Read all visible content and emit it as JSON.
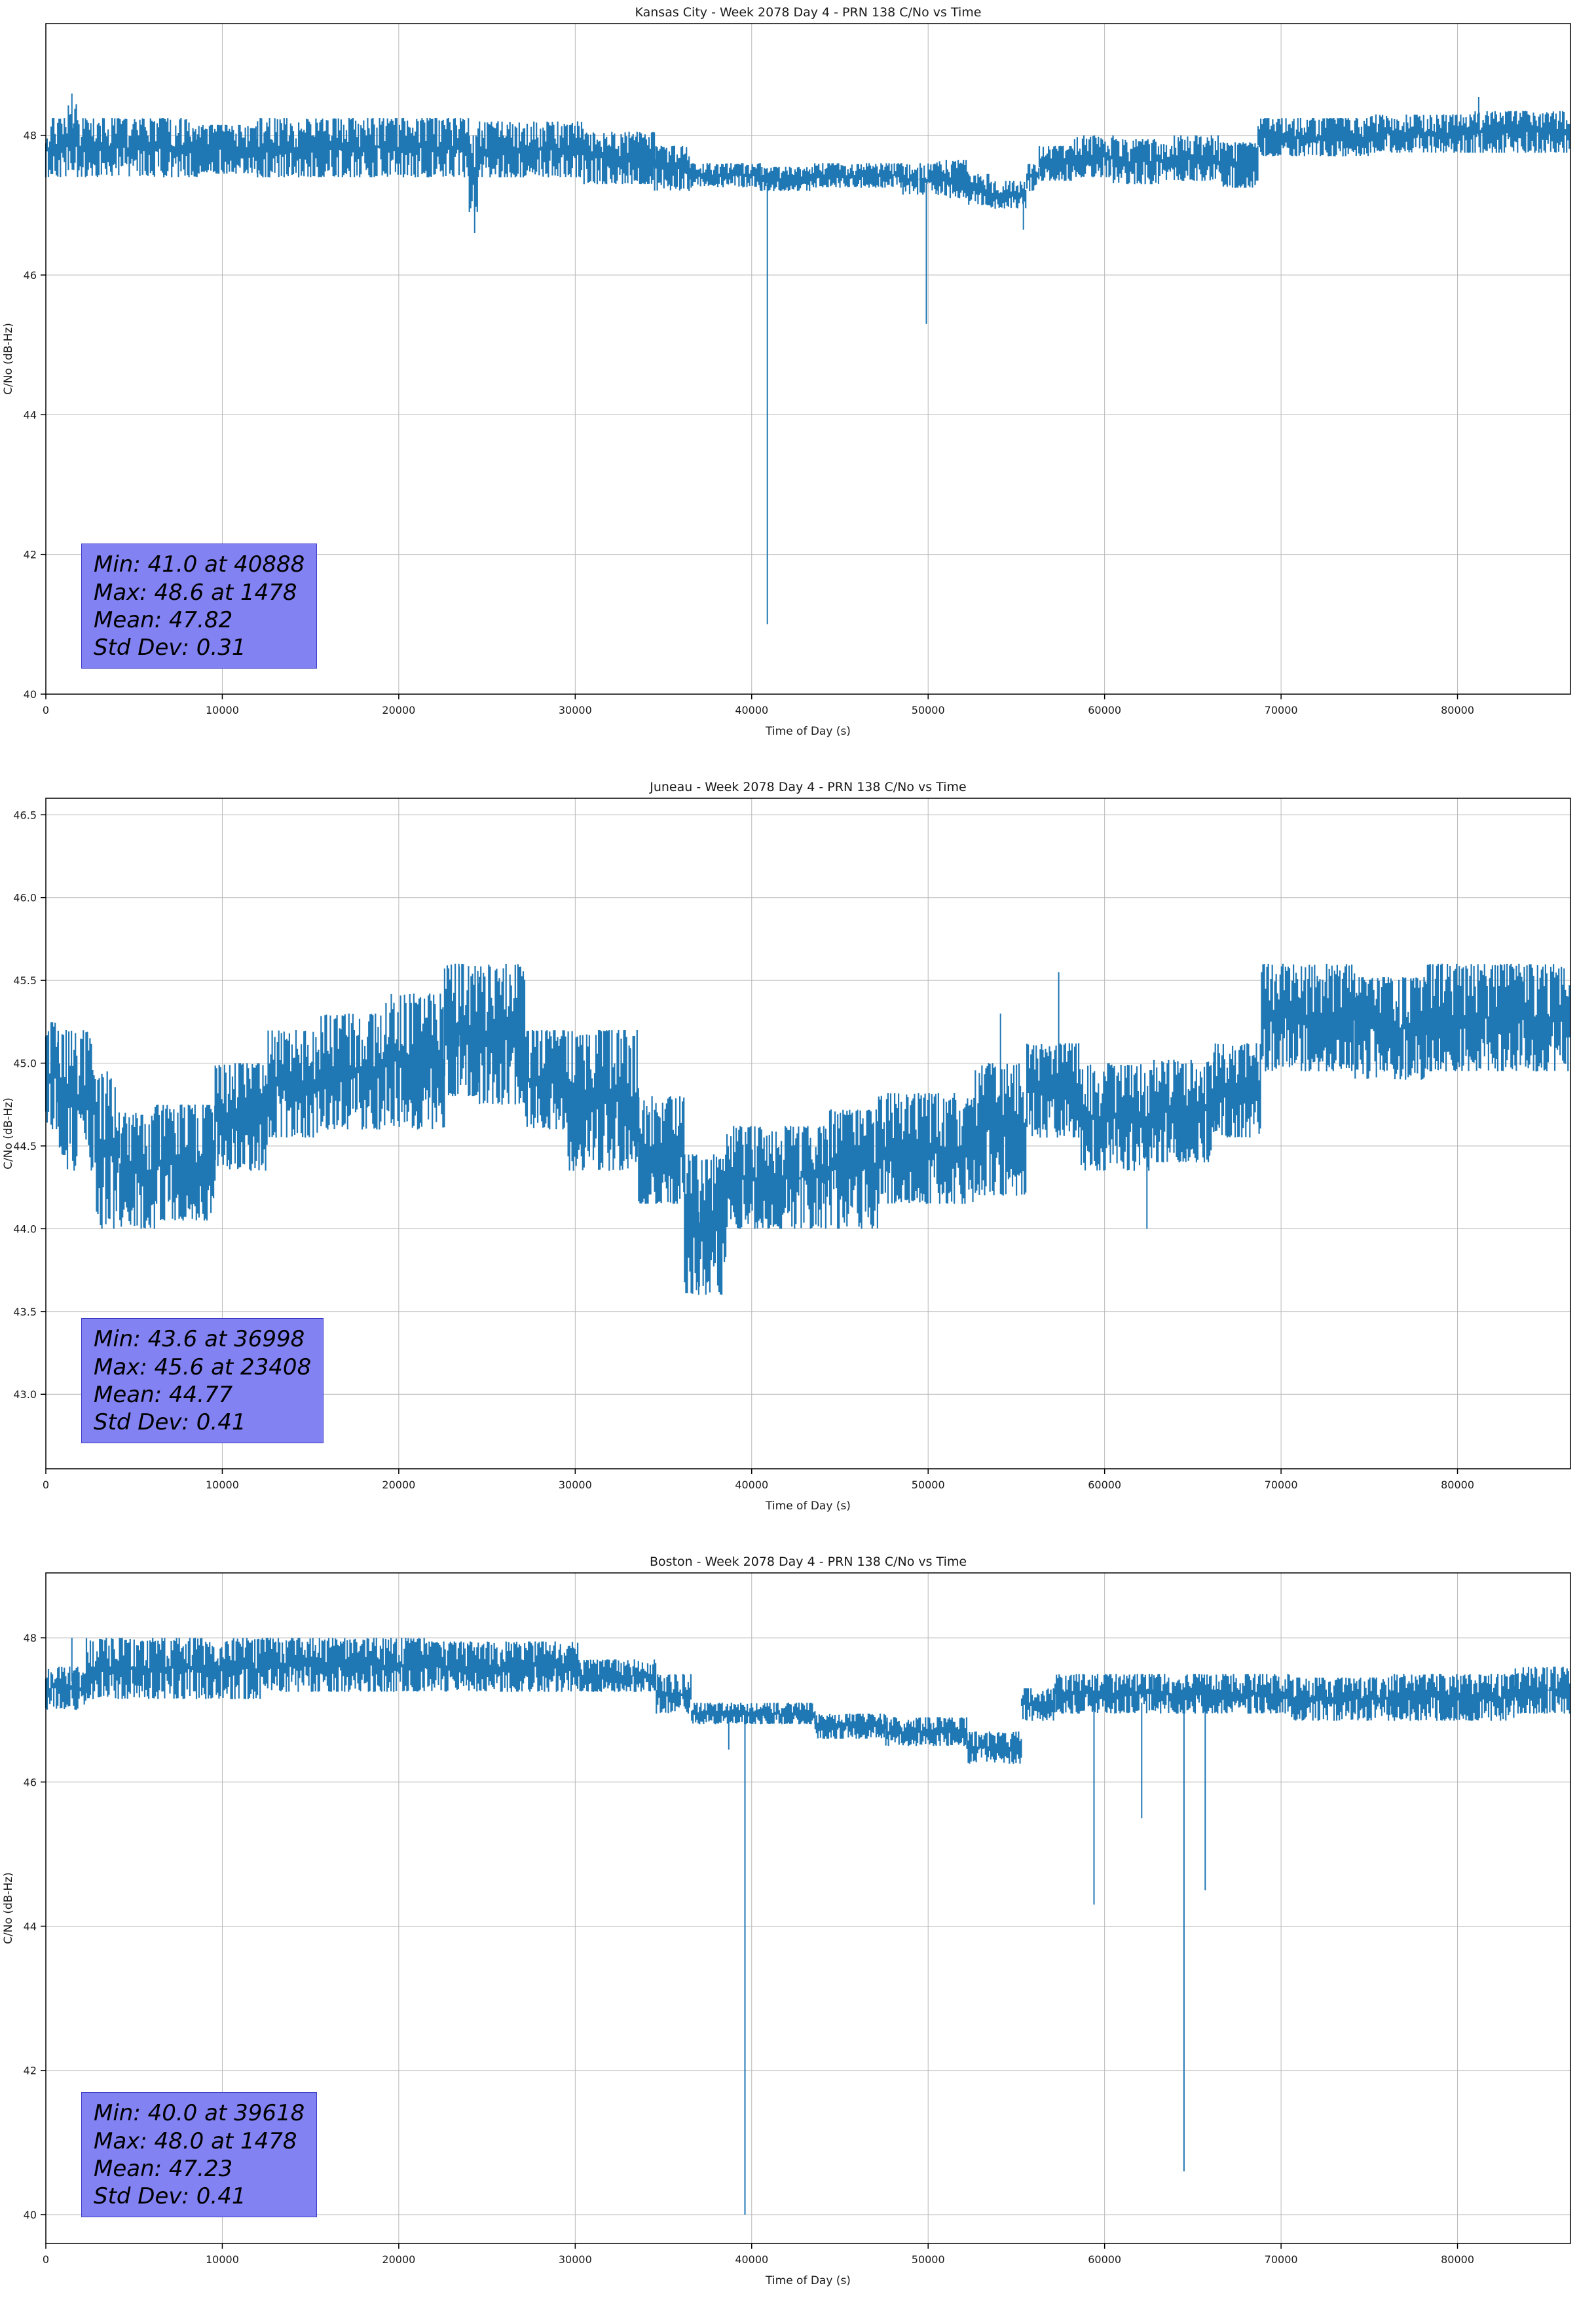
{
  "page": {
    "background": "#ffffff",
    "plot_line_color": "#1f77b4",
    "grid_color": "#b8b8b8",
    "stats_box_bg": "#8282f2"
  },
  "chart_data": [
    {
      "type": "line",
      "title": "Kansas City - Week 2078 Day 4 - PRN 138 C/No vs Time",
      "xlabel": "Time of Day (s)",
      "ylabel": "C/No (dB-Hz)",
      "xlim": [
        0,
        86400
      ],
      "ylim": [
        40,
        49.6
      ],
      "xticks": [
        0,
        10000,
        20000,
        30000,
        40000,
        50000,
        60000,
        70000,
        80000
      ],
      "xtick_labels": [
        "0",
        "10000",
        "20000",
        "30000",
        "40000",
        "50000",
        "60000",
        "70000",
        "80000"
      ],
      "yticks": [
        40,
        42,
        44,
        46,
        48
      ],
      "ytick_labels": [
        "40",
        "42",
        "44",
        "46",
        "48"
      ],
      "grid": true,
      "legend": "none",
      "stats": [
        "Min: 41.0 at 40888",
        "Max: 48.6 at 1478",
        "Mean: 47.82",
        "Std Dev: 0.31"
      ],
      "min": {
        "value": 41.0,
        "time": 40888
      },
      "max": {
        "value": 48.6,
        "time": 1478
      },
      "mean": 47.82,
      "std_dev": 0.31,
      "seed": 11,
      "band_segments": [
        [
          0,
          1200,
          47.4,
          48.25
        ],
        [
          1200,
          1800,
          47.5,
          48.45
        ],
        [
          1800,
          8600,
          47.4,
          48.25
        ],
        [
          8600,
          12000,
          47.45,
          48.15
        ],
        [
          12000,
          24000,
          47.4,
          48.25
        ],
        [
          24000,
          24500,
          46.9,
          48.0
        ],
        [
          24500,
          30500,
          47.4,
          48.2
        ],
        [
          30500,
          34500,
          47.3,
          48.05
        ],
        [
          34500,
          36500,
          47.2,
          47.85
        ],
        [
          36500,
          40500,
          47.25,
          47.6
        ],
        [
          40500,
          43500,
          47.2,
          47.55
        ],
        [
          43500,
          48500,
          47.25,
          47.6
        ],
        [
          48500,
          50500,
          47.15,
          47.6
        ],
        [
          50500,
          52300,
          47.1,
          47.65
        ],
        [
          52300,
          53500,
          47.0,
          47.45
        ],
        [
          53500,
          55600,
          46.95,
          47.35
        ],
        [
          55600,
          56300,
          47.2,
          47.6
        ],
        [
          56300,
          58300,
          47.35,
          47.85
        ],
        [
          58300,
          60500,
          47.4,
          48.0
        ],
        [
          60500,
          63500,
          47.3,
          47.95
        ],
        [
          63500,
          66500,
          47.35,
          48.0
        ],
        [
          66500,
          68700,
          47.25,
          47.9
        ],
        [
          68700,
          75000,
          47.7,
          48.25
        ],
        [
          75000,
          81000,
          47.75,
          48.3
        ],
        [
          81000,
          86400,
          47.75,
          48.35
        ]
      ],
      "spikes": [
        [
          1478,
          48.6,
          48.0
        ],
        [
          24300,
          46.6,
          47.5
        ],
        [
          40888,
          41.0,
          47.3
        ],
        [
          49900,
          45.3,
          47.3
        ],
        [
          55400,
          46.65,
          47.1
        ],
        [
          81200,
          48.55,
          48.0
        ]
      ]
    },
    {
      "type": "line",
      "title": "Juneau - Week 2078 Day 4 - PRN 138 C/No vs Time",
      "xlabel": "Time of Day (s)",
      "ylabel": "C/No (dB-Hz)",
      "xlim": [
        0,
        86400
      ],
      "ylim": [
        42.55,
        46.6
      ],
      "xticks": [
        0,
        10000,
        20000,
        30000,
        40000,
        50000,
        60000,
        70000,
        80000
      ],
      "xtick_labels": [
        "0",
        "10000",
        "20000",
        "30000",
        "40000",
        "50000",
        "60000",
        "70000",
        "80000"
      ],
      "yticks": [
        43.0,
        43.5,
        44.0,
        44.5,
        45.0,
        45.5,
        46.0,
        46.5
      ],
      "ytick_labels": [
        "43.0",
        "43.5",
        "44.0",
        "44.5",
        "45.0",
        "45.5",
        "46.0",
        "46.5"
      ],
      "grid": true,
      "legend": "none",
      "stats": [
        "Min: 43.6 at 36998",
        "Max: 45.6 at 23408",
        "Mean: 44.77",
        "Std Dev: 0.41"
      ],
      "min": {
        "value": 43.6,
        "time": 36998
      },
      "max": {
        "value": 45.6,
        "time": 23408
      },
      "mean": 44.77,
      "std_dev": 0.41,
      "seed": 22,
      "band_segments": [
        [
          0,
          700,
          44.6,
          45.25
        ],
        [
          700,
          2800,
          44.35,
          45.2
        ],
        [
          2800,
          4200,
          44.0,
          44.95
        ],
        [
          4200,
          6200,
          44.0,
          44.7
        ],
        [
          6200,
          9600,
          44.05,
          44.75
        ],
        [
          9600,
          12600,
          44.35,
          45.0
        ],
        [
          12600,
          15600,
          44.55,
          45.2
        ],
        [
          15600,
          19200,
          44.6,
          45.3
        ],
        [
          19200,
          22600,
          44.6,
          45.42
        ],
        [
          22600,
          24500,
          44.8,
          45.6
        ],
        [
          24500,
          27200,
          44.75,
          45.6
        ],
        [
          27200,
          29600,
          44.6,
          45.2
        ],
        [
          29600,
          33600,
          44.35,
          45.2
        ],
        [
          33600,
          36200,
          44.15,
          44.8
        ],
        [
          36200,
          38600,
          43.6,
          44.45
        ],
        [
          38600,
          44200,
          44.0,
          44.62
        ],
        [
          44200,
          47200,
          44.0,
          44.72
        ],
        [
          47200,
          52600,
          44.15,
          44.82
        ],
        [
          52600,
          55600,
          44.2,
          45.0
        ],
        [
          55600,
          58600,
          44.55,
          45.12
        ],
        [
          58600,
          62800,
          44.35,
          45.0
        ],
        [
          62800,
          66200,
          44.4,
          45.02
        ],
        [
          66200,
          68900,
          44.55,
          45.12
        ],
        [
          68900,
          74200,
          44.95,
          45.6
        ],
        [
          74200,
          78300,
          44.9,
          45.52
        ],
        [
          78300,
          86400,
          44.95,
          45.6
        ]
      ],
      "spikes": [
        [
          23408,
          45.6,
          45.1
        ],
        [
          36998,
          43.6,
          44.1
        ],
        [
          54100,
          45.3,
          44.6
        ],
        [
          57400,
          45.55,
          44.9
        ],
        [
          62400,
          44.0,
          44.6
        ]
      ]
    },
    {
      "type": "line",
      "title": "Boston - Week 2078 Day 4 - PRN 138 C/No vs Time",
      "xlabel": "Time of Day (s)",
      "ylabel": "C/No (dB-Hz)",
      "xlim": [
        0,
        86400
      ],
      "ylim": [
        39.6,
        48.9
      ],
      "xticks": [
        0,
        10000,
        20000,
        30000,
        40000,
        50000,
        60000,
        70000,
        80000
      ],
      "xtick_labels": [
        "0",
        "10000",
        "20000",
        "30000",
        "40000",
        "50000",
        "60000",
        "70000",
        "80000"
      ],
      "yticks": [
        40,
        42,
        44,
        46,
        48
      ],
      "ytick_labels": [
        "40",
        "42",
        "44",
        "46",
        "48"
      ],
      "grid": true,
      "legend": "none",
      "stats": [
        "Min: 40.0 at 39618",
        "Max: 48.0 at 1478",
        "Mean: 47.23",
        "Std Dev: 0.41"
      ],
      "min": {
        "value": 40.0,
        "time": 39618
      },
      "max": {
        "value": 48.0,
        "time": 1478
      },
      "mean": 47.23,
      "std_dev": 0.41,
      "seed": 33,
      "band_segments": [
        [
          0,
          2300,
          47.0,
          47.6
        ],
        [
          2300,
          12200,
          47.15,
          48.0
        ],
        [
          12200,
          21500,
          47.25,
          48.0
        ],
        [
          21500,
          30200,
          47.25,
          47.95
        ],
        [
          30200,
          34600,
          47.25,
          47.7
        ],
        [
          34600,
          36600,
          46.95,
          47.5
        ],
        [
          36600,
          43600,
          46.8,
          47.1
        ],
        [
          43600,
          47600,
          46.6,
          46.95
        ],
        [
          47600,
          52200,
          46.5,
          46.9
        ],
        [
          52200,
          55300,
          46.25,
          46.7
        ],
        [
          55300,
          57200,
          46.85,
          47.3
        ],
        [
          57200,
          62800,
          46.95,
          47.5
        ],
        [
          62800,
          70600,
          46.95,
          47.5
        ],
        [
          70600,
          76200,
          46.85,
          47.45
        ],
        [
          76200,
          83200,
          46.85,
          47.5
        ],
        [
          83200,
          86400,
          46.95,
          47.6
        ]
      ],
      "spikes": [
        [
          1478,
          48.0,
          47.4
        ],
        [
          38700,
          46.45,
          46.95
        ],
        [
          39618,
          40.0,
          46.95
        ],
        [
          59400,
          44.3,
          47.1
        ],
        [
          62100,
          45.5,
          47.1
        ],
        [
          64500,
          40.6,
          47.1
        ],
        [
          65700,
          44.5,
          47.1
        ]
      ]
    }
  ]
}
